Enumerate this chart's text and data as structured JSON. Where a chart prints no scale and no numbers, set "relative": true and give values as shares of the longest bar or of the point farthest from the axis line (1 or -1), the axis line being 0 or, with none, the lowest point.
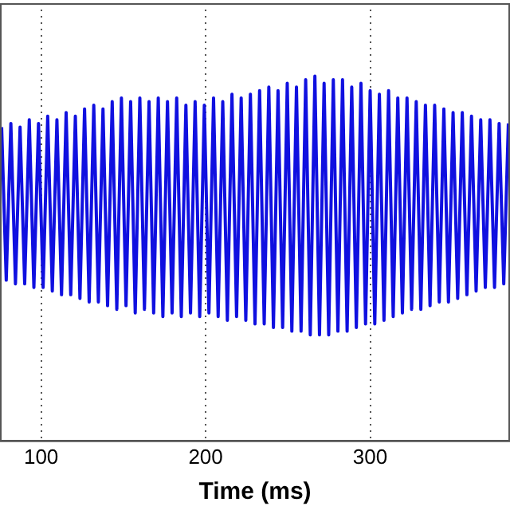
{
  "chart_data": {
    "type": "line",
    "xlabel": "Time (ms)",
    "relative": true,
    "color": "#1010e0",
    "xlim": [
      75,
      385
    ],
    "xticks": [
      100,
      200,
      300
    ],
    "grid": "x",
    "legend": false,
    "marker": "none",
    "line_style": "solid",
    "x": [
      76,
      78.8,
      81.6,
      84.4,
      87.2,
      90,
      92.8,
      95.6,
      98.4,
      101.2,
      104,
      106.8,
      109.6,
      112.4,
      115.2,
      118,
      120.8,
      123.6,
      126.4,
      129.2,
      132,
      134.8,
      137.6,
      140.4,
      143.2,
      146,
      148.8,
      151.6,
      154.4,
      157.2,
      160,
      162.8,
      165.6,
      168.4,
      171.2,
      174,
      176.8,
      179.6,
      182.4,
      185.2,
      188,
      190.8,
      193.6,
      196.4,
      199.2,
      202,
      204.8,
      207.6,
      210.4,
      213.2,
      216,
      218.8,
      221.6,
      224.4,
      227.2,
      230,
      232.8,
      235.6,
      238.4,
      241.2,
      244,
      246.8,
      249.6,
      252.4,
      255.2,
      258,
      260.8,
      263.6,
      266.4,
      269.2,
      272,
      274.8,
      277.6,
      280.4,
      283.2,
      286,
      288.8,
      291.6,
      294.4,
      297.2,
      300,
      302.8,
      305.6,
      308.4,
      311.2,
      314,
      316.8,
      319.6,
      322.4,
      325.2,
      328,
      330.8,
      333.6,
      336.4,
      339.2,
      342,
      344.8,
      347.6,
      350.4,
      353.2,
      356,
      358.8,
      361.6,
      364.4,
      367.2,
      370,
      372.8,
      375.6,
      378.4,
      381.2,
      384
    ],
    "values": [
      0.86,
      0.44,
      0.87,
      0.43,
      0.86,
      0.43,
      0.88,
      0.42,
      0.87,
      0.42,
      0.89,
      0.41,
      0.88,
      0.4,
      0.9,
      0.4,
      0.89,
      0.39,
      0.91,
      0.38,
      0.92,
      0.38,
      0.91,
      0.37,
      0.93,
      0.36,
      0.94,
      0.37,
      0.93,
      0.35,
      0.94,
      0.36,
      0.93,
      0.35,
      0.94,
      0.34,
      0.93,
      0.35,
      0.94,
      0.34,
      0.92,
      0.35,
      0.93,
      0.34,
      0.92,
      0.35,
      0.94,
      0.34,
      0.93,
      0.33,
      0.95,
      0.34,
      0.94,
      0.33,
      0.95,
      0.32,
      0.96,
      0.32,
      0.97,
      0.31,
      0.96,
      0.31,
      0.98,
      0.3,
      0.97,
      0.3,
      0.99,
      0.29,
      1,
      0.29,
      0.98,
      0.29,
      0.99,
      0.3,
      0.99,
      0.3,
      0.97,
      0.31,
      0.98,
      0.32,
      0.96,
      0.32,
      0.95,
      0.33,
      0.96,
      0.34,
      0.94,
      0.35,
      0.94,
      0.36,
      0.93,
      0.36,
      0.92,
      0.37,
      0.92,
      0.38,
      0.91,
      0.38,
      0.9,
      0.39,
      0.9,
      0.4,
      0.89,
      0.41,
      0.88,
      0.42,
      0.88,
      0.42,
      0.87,
      0.43,
      0.87
    ]
  }
}
